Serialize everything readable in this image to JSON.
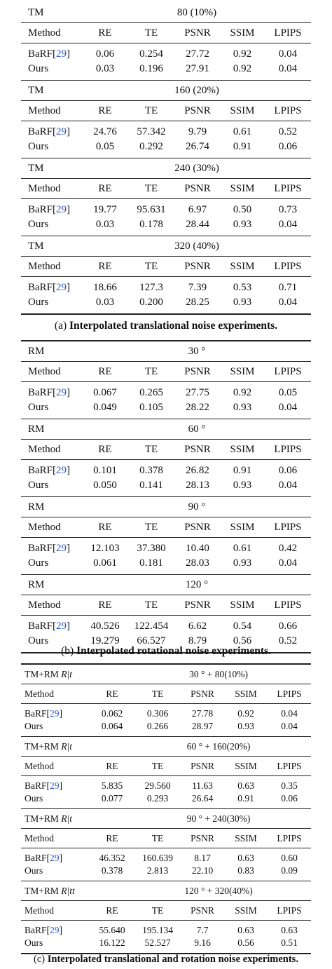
{
  "headers": [
    "Method",
    "RE",
    "TE",
    "PSNR",
    "SSIM",
    "LPIPS"
  ],
  "cite": "29",
  "table_a": {
    "group_label": "TM",
    "caption_prefix": "(a)",
    "caption_text": "Interpolated translational noise experiments.",
    "groups": [
      {
        "value": "80 (10%)",
        "rows": [
          {
            "method": "BaRF",
            "vals": [
              "0.06",
              "0.254",
              "27.72",
              "0.92",
              "0.04"
            ]
          },
          {
            "method": "Ours",
            "vals": [
              "0.03",
              "0.196",
              "27.91",
              "0.92",
              "0.04"
            ]
          }
        ]
      },
      {
        "value": "160 (20%)",
        "rows": [
          {
            "method": "BaRF",
            "vals": [
              "24.76",
              "57.342",
              "9.79",
              "0.61",
              "0.52"
            ]
          },
          {
            "method": "Ours",
            "vals": [
              "0.05",
              "0.292",
              "26.74",
              "0.91",
              "0.06"
            ]
          }
        ]
      },
      {
        "value": "240 (30%)",
        "rows": [
          {
            "method": "BaRF",
            "vals": [
              "19.77",
              "95.631",
              "6.97",
              "0.50",
              "0.73"
            ]
          },
          {
            "method": "Ours",
            "vals": [
              "0.03",
              "0.178",
              "28.44",
              "0.93",
              "0.04"
            ]
          }
        ]
      },
      {
        "value": "320 (40%)",
        "rows": [
          {
            "method": "BaRF",
            "vals": [
              "18.66",
              "127.3",
              "7.39",
              "0.53",
              "0.71"
            ]
          },
          {
            "method": "Ours",
            "vals": [
              "0.03",
              "0.200",
              "28.25",
              "0.93",
              "0.04"
            ]
          }
        ]
      }
    ]
  },
  "table_b": {
    "group_label": "RM",
    "caption_prefix": "(b)",
    "caption_text": "Interpolated rotational noise experiments.",
    "groups": [
      {
        "value": "30 °",
        "rows": [
          {
            "method": "BaRF",
            "vals": [
              "0.067",
              "0.265",
              "27.75",
              "0.92",
              "0.05"
            ]
          },
          {
            "method": "Ours",
            "vals": [
              "0.049",
              "0.105",
              "28.22",
              "0.93",
              "0.04"
            ]
          }
        ]
      },
      {
        "value": "60 °",
        "rows": [
          {
            "method": "BaRF",
            "vals": [
              "0.101",
              "0.378",
              "26.82",
              "0.91",
              "0.06"
            ]
          },
          {
            "method": "Ours",
            "vals": [
              "0.050",
              "0.141",
              "28.13",
              "0.93",
              "0.04"
            ]
          }
        ]
      },
      {
        "value": "90 °",
        "rows": [
          {
            "method": "BaRF",
            "vals": [
              "12.103",
              "37.380",
              "10.40",
              "0.61",
              "0.42"
            ]
          },
          {
            "method": "Ours",
            "vals": [
              "0.061",
              "0.181",
              "28.03",
              "0.93",
              "0.04"
            ]
          }
        ]
      },
      {
        "value": "120 °",
        "rows": [
          {
            "method": "BaRF",
            "vals": [
              "40.526",
              "122.454",
              "6.62",
              "0.54",
              "0.66"
            ]
          },
          {
            "method": "Ours",
            "vals": [
              "19.279",
              "66.527",
              "8.79",
              "0.56",
              "0.52"
            ]
          }
        ]
      }
    ]
  },
  "table_c": {
    "caption_prefix": "(c)",
    "caption_text": "Interpolated translational and rotation noise experiments.",
    "groups": [
      {
        "label_prefix": "TM+RM ",
        "label_math": "R|t",
        "value": "30 ° + 80(10%)",
        "rows": [
          {
            "method": "BaRF",
            "vals": [
              "0.062",
              "0.306",
              "27.78",
              "0.92",
              "0.04"
            ]
          },
          {
            "method": "Ours",
            "vals": [
              "0.064",
              "0.266",
              "28.97",
              "0.93",
              "0.04"
            ]
          }
        ]
      },
      {
        "label_prefix": "TM+RM ",
        "label_math": "R|t",
        "value": "60 ° + 160(20%)",
        "rows": [
          {
            "method": "BaRF",
            "vals": [
              "5.835",
              "29.560",
              "11.63",
              "0.63",
              "0.35"
            ]
          },
          {
            "method": "Ours",
            "vals": [
              "0.077",
              "0.293",
              "26.64",
              "0.91",
              "0.06"
            ]
          }
        ]
      },
      {
        "label_prefix": "TM+RM ",
        "label_math": "R|t",
        "value": "90 ° + 240(30%)",
        "rows": [
          {
            "method": "BaRF",
            "vals": [
              "46.352",
              "160.639",
              "8.17",
              "0.63",
              "0.60"
            ]
          },
          {
            "method": "Ours",
            "vals": [
              "0.378",
              "2.813",
              "22.10",
              "0.83",
              "0.09"
            ]
          }
        ]
      },
      {
        "label_prefix": "TM+RM ",
        "label_math": "R|tt",
        "value": "120 ° + 320(40%)",
        "rows": [
          {
            "method": "BaRF",
            "vals": [
              "55.640",
              "195.134",
              "7.7",
              "0.63",
              "0.63"
            ]
          },
          {
            "method": "Ours",
            "vals": [
              "16.122",
              "52.527",
              "9.16",
              "0.56",
              "0.51"
            ]
          }
        ]
      }
    ]
  }
}
